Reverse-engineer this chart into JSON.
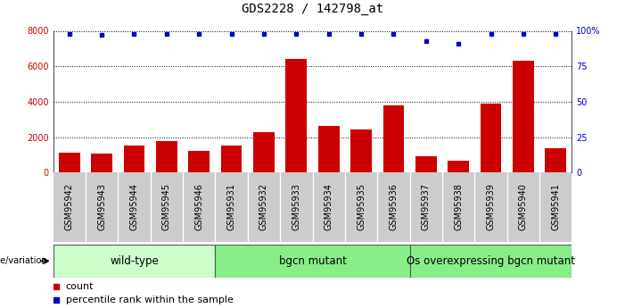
{
  "title": "GDS2228 / 142798_at",
  "samples": [
    "GSM95942",
    "GSM95943",
    "GSM95944",
    "GSM95945",
    "GSM95946",
    "GSM95931",
    "GSM95932",
    "GSM95933",
    "GSM95934",
    "GSM95935",
    "GSM95936",
    "GSM95937",
    "GSM95938",
    "GSM95939",
    "GSM95940",
    "GSM95941"
  ],
  "counts": [
    1100,
    1050,
    1500,
    1750,
    1200,
    1500,
    2300,
    6400,
    2650,
    2450,
    3800,
    900,
    650,
    3900,
    6300,
    1350
  ],
  "percentile_ranks": [
    98,
    97,
    98,
    98,
    98,
    98,
    98,
    98,
    98,
    98,
    98,
    93,
    91,
    98,
    98,
    98
  ],
  "groups": [
    {
      "label": "wild-type",
      "start": 0,
      "end": 5,
      "color": "#ccffcc"
    },
    {
      "label": "bgcn mutant",
      "start": 5,
      "end": 11,
      "color": "#88ee88"
    },
    {
      "label": "Os overexpressing bgcn mutant",
      "start": 11,
      "end": 16,
      "color": "#88ee88"
    }
  ],
  "bar_color": "#cc0000",
  "dot_color": "#0000cc",
  "ylim_left": [
    0,
    8000
  ],
  "ylim_right": [
    0,
    100
  ],
  "yticks_left": [
    0,
    2000,
    4000,
    6000,
    8000
  ],
  "yticks_right": [
    0,
    25,
    50,
    75,
    100
  ],
  "yticklabels_right": [
    "0",
    "25",
    "50",
    "75",
    "100%"
  ],
  "grid_values": [
    2000,
    4000,
    6000,
    8000
  ],
  "bar_color_hex": "#cc0000",
  "dot_color_hex": "#0000cc",
  "genotype_label": "genotype/variation",
  "legend_count_label": "count",
  "legend_pct_label": "percentile rank within the sample",
  "title_fontsize": 10,
  "tick_fontsize": 7,
  "group_fontsize": 8.5,
  "legend_fontsize": 8,
  "xticklabel_fontsize": 7
}
